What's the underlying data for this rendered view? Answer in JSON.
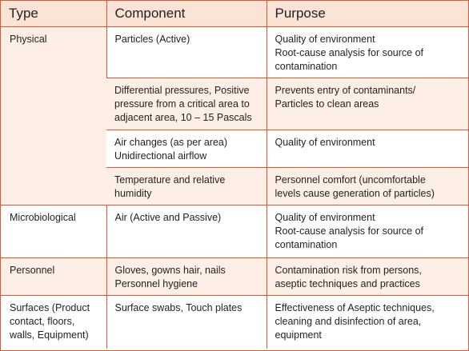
{
  "table": {
    "headers": [
      "Type",
      "Component",
      "Purpose"
    ],
    "rows": [
      {
        "type": "Physical",
        "component": "Particles (Active)",
        "purpose": "Quality of environment\nRoot-cause analysis for source of\ncontamination"
      },
      {
        "type": "",
        "component": "Differential pressures, Positive\npressure from a critical area to\nadjacent area, 10 – 15 Pascals",
        "purpose": "Prevents entry of contaminants/\nParticles to clean areas"
      },
      {
        "type": "",
        "component": "Air changes (as per area)\nUnidirectional airflow",
        "purpose": "Quality of environment"
      },
      {
        "type": "",
        "component": "Temperature and relative\nhumidity",
        "purpose": "Personnel comfort (uncomfortable\nlevels cause generation of particles)"
      },
      {
        "type": "Microbiological",
        "component": "Air (Active and Passive)",
        "purpose": "Quality of environment\nRoot-cause analysis for source of\ncontamination"
      },
      {
        "type": "Personnel",
        "component": "Gloves, gowns hair, nails\nPersonnel hygiene",
        "purpose": "Contamination risk from persons,\naseptic techniques and practices"
      },
      {
        "type": "Surfaces (Product\ncontact, floors,\nwalls,  Equipment)",
        "component": "Surface swabs, Touch plates",
        "purpose": "Effectiveness of Aseptic techniques,\ncleaning and disinfection of area,\nequipment"
      }
    ]
  },
  "colors": {
    "border": "#e8542c",
    "header_fill": "#fbe3d6",
    "row_tint": "#fdeee6",
    "text": "#231f20"
  }
}
